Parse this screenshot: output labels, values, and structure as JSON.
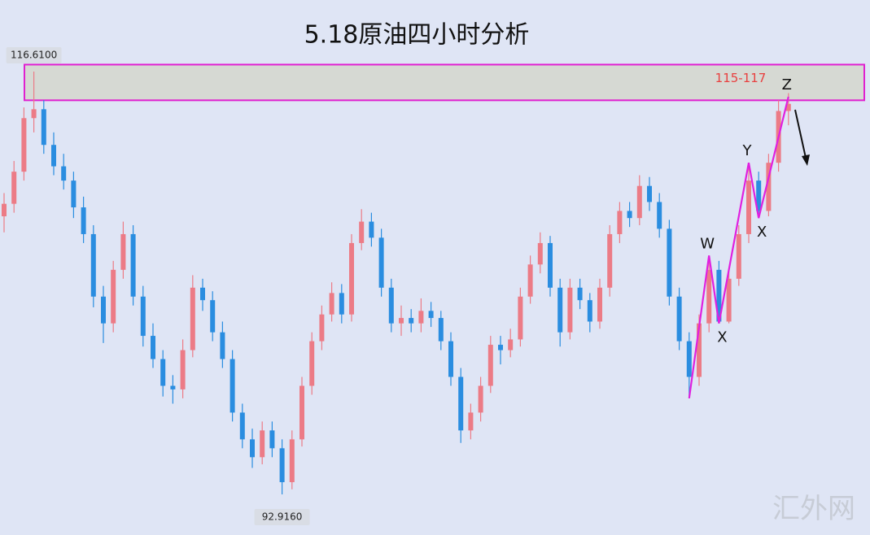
{
  "chart_data": {
    "type": "candlestick",
    "title": "5.18原油四小时分析",
    "ylim": [
      90.64,
      120.62
    ],
    "up_color": "#ec7b86",
    "down_color": "#2a8de0",
    "candles": [
      [
        108.5,
        109.8,
        107.6,
        109.2
      ],
      [
        109.2,
        111.6,
        108.7,
        111
      ],
      [
        111,
        114.6,
        110.5,
        114
      ],
      [
        114,
        116.61,
        113.2,
        114.5
      ],
      [
        114.5,
        115,
        112,
        112.5
      ],
      [
        112.5,
        113.2,
        110.8,
        111.3
      ],
      [
        111.3,
        112,
        110,
        110.5
      ],
      [
        110.5,
        111,
        108.4,
        109
      ],
      [
        109,
        109.6,
        107,
        107.5
      ],
      [
        107.5,
        108,
        103.4,
        104
      ],
      [
        104,
        104.6,
        101.4,
        102.5
      ],
      [
        102.5,
        106,
        102,
        105.5
      ],
      [
        105.5,
        108.2,
        105,
        107.5
      ],
      [
        107.5,
        108,
        103.5,
        104
      ],
      [
        104,
        104.6,
        101.2,
        101.8
      ],
      [
        101.8,
        102.5,
        100,
        100.5
      ],
      [
        100.5,
        101,
        98.4,
        99
      ],
      [
        99,
        99.6,
        98,
        98.8
      ],
      [
        98.8,
        101.6,
        98.3,
        101
      ],
      [
        101,
        105.2,
        100.6,
        104.5
      ],
      [
        104.5,
        105,
        103.2,
        103.8
      ],
      [
        103.8,
        104.3,
        101.5,
        102
      ],
      [
        102,
        102.6,
        100,
        100.5
      ],
      [
        100.5,
        101,
        97,
        97.5
      ],
      [
        97.5,
        98,
        95.5,
        96
      ],
      [
        96,
        96.6,
        94.4,
        95
      ],
      [
        95,
        97,
        94.6,
        96.5
      ],
      [
        96.5,
        97,
        95,
        95.5
      ],
      [
        95.5,
        96,
        92.916,
        93.6
      ],
      [
        93.6,
        96.5,
        93.2,
        96
      ],
      [
        96,
        99.5,
        95.6,
        99
      ],
      [
        99,
        102,
        98.5,
        101.5
      ],
      [
        101.5,
        103.5,
        101,
        103
      ],
      [
        103,
        104.8,
        102.6,
        104.2
      ],
      [
        104.2,
        104.7,
        102.5,
        103
      ],
      [
        103,
        107.5,
        102.6,
        107
      ],
      [
        107,
        108.9,
        106.6,
        108.2
      ],
      [
        108.2,
        108.7,
        106.8,
        107.3
      ],
      [
        107.3,
        107.8,
        104,
        104.5
      ],
      [
        104.5,
        105,
        102,
        102.5
      ],
      [
        102.5,
        103.5,
        101.8,
        102.8
      ],
      [
        102.8,
        103.3,
        102,
        102.5
      ],
      [
        102.5,
        103.9,
        102,
        103.2
      ],
      [
        103.2,
        103.7,
        102.3,
        102.8
      ],
      [
        102.8,
        103.2,
        101,
        101.5
      ],
      [
        101.5,
        102,
        99,
        99.5
      ],
      [
        99.5,
        100,
        95.8,
        96.5
      ],
      [
        96.5,
        98,
        96,
        97.5
      ],
      [
        97.5,
        99.5,
        97,
        99
      ],
      [
        99,
        101.8,
        98.6,
        101.3
      ],
      [
        101.3,
        101.8,
        100.2,
        101
      ],
      [
        101,
        102.2,
        100.6,
        101.6
      ],
      [
        101.6,
        104.5,
        101.2,
        104
      ],
      [
        104,
        106.3,
        103.6,
        105.8
      ],
      [
        105.8,
        107.6,
        105.3,
        107
      ],
      [
        107,
        107.4,
        104,
        104.5
      ],
      [
        104.5,
        105,
        101.2,
        102
      ],
      [
        102,
        105,
        101.6,
        104.5
      ],
      [
        104.5,
        105,
        103.3,
        103.8
      ],
      [
        103.8,
        104.2,
        102,
        102.6
      ],
      [
        102.6,
        105,
        102.2,
        104.5
      ],
      [
        104.5,
        108,
        104,
        107.5
      ],
      [
        107.5,
        109.3,
        107,
        108.8
      ],
      [
        108.8,
        109.3,
        107.9,
        108.4
      ],
      [
        108.4,
        110.8,
        108,
        110.2
      ],
      [
        110.2,
        110.7,
        108.8,
        109.3
      ],
      [
        109.3,
        109.8,
        107.3,
        107.8
      ],
      [
        107.8,
        108.3,
        103.5,
        104
      ],
      [
        104,
        104.5,
        101,
        101.5
      ],
      [
        101.5,
        102,
        98.3,
        99.5
      ],
      [
        99.5,
        103,
        99,
        102.5
      ],
      [
        102.5,
        106.3,
        102,
        105.5
      ],
      [
        105.5,
        106,
        102.5,
        102.6
      ],
      [
        102.6,
        105.6,
        102.5,
        105
      ],
      [
        105,
        108,
        104.6,
        107.5
      ],
      [
        107.5,
        111.5,
        107,
        110.5
      ],
      [
        110.5,
        111,
        108.4,
        108.8
      ],
      [
        108.8,
        112,
        108.5,
        111.5
      ],
      [
        111.5,
        115,
        111,
        114.4
      ],
      [
        114.4,
        115.4,
        113.6,
        114.8
      ]
    ],
    "markers": [
      {
        "value": 116.61,
        "label": "116.6100"
      },
      {
        "value": 92.916,
        "label": "92.9160"
      }
    ],
    "zone": {
      "from": 115,
      "to": 117,
      "label": "115-117",
      "color": "#e020d0"
    },
    "wave": {
      "x": [
        69,
        71,
        72,
        75,
        76,
        79
      ],
      "values": [
        98.3,
        106.3,
        102.5,
        111.5,
        108.4,
        115.2
      ],
      "labels": [
        null,
        "W",
        "X",
        "Y",
        "X",
        "Z"
      ],
      "color": "#e020e0"
    }
  },
  "watermark": "汇外网"
}
